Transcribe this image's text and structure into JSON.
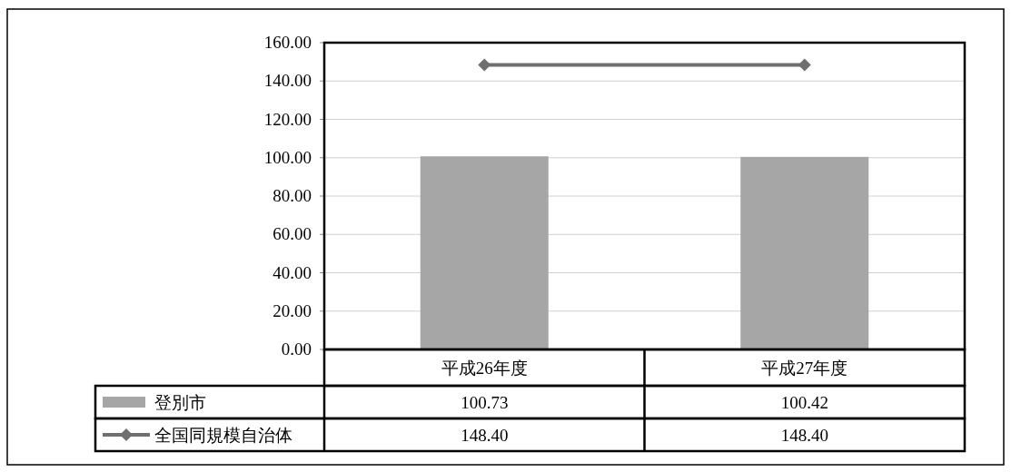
{
  "chart_data": {
    "type": "bar",
    "categories": [
      "平成26年度",
      "平成27年度"
    ],
    "series": [
      {
        "name": "登別市",
        "color": "#a6a6a6",
        "values": [
          100.73,
          100.42
        ],
        "value_labels": [
          "100.73",
          "100.42"
        ]
      },
      {
        "name": "全国同規模自治体",
        "type": "line",
        "color": "#6f6f6f",
        "marker": "diamond",
        "values": [
          148.4,
          148.4
        ],
        "value_labels": [
          "148.40",
          "148.40"
        ]
      }
    ],
    "ylim": [
      0,
      160
    ],
    "yticks": [
      {
        "value": 0,
        "label": "0.00"
      },
      {
        "value": 20,
        "label": "20.00"
      },
      {
        "value": 40,
        "label": "40.00"
      },
      {
        "value": 60,
        "label": "60.00"
      },
      {
        "value": 80,
        "label": "80.00"
      },
      {
        "value": 100,
        "label": "100.00"
      },
      {
        "value": 120,
        "label": "120.00"
      },
      {
        "value": 140,
        "label": "140.00"
      },
      {
        "value": 160,
        "label": "160.00"
      }
    ],
    "grid": "y",
    "legend": "bottom left"
  }
}
